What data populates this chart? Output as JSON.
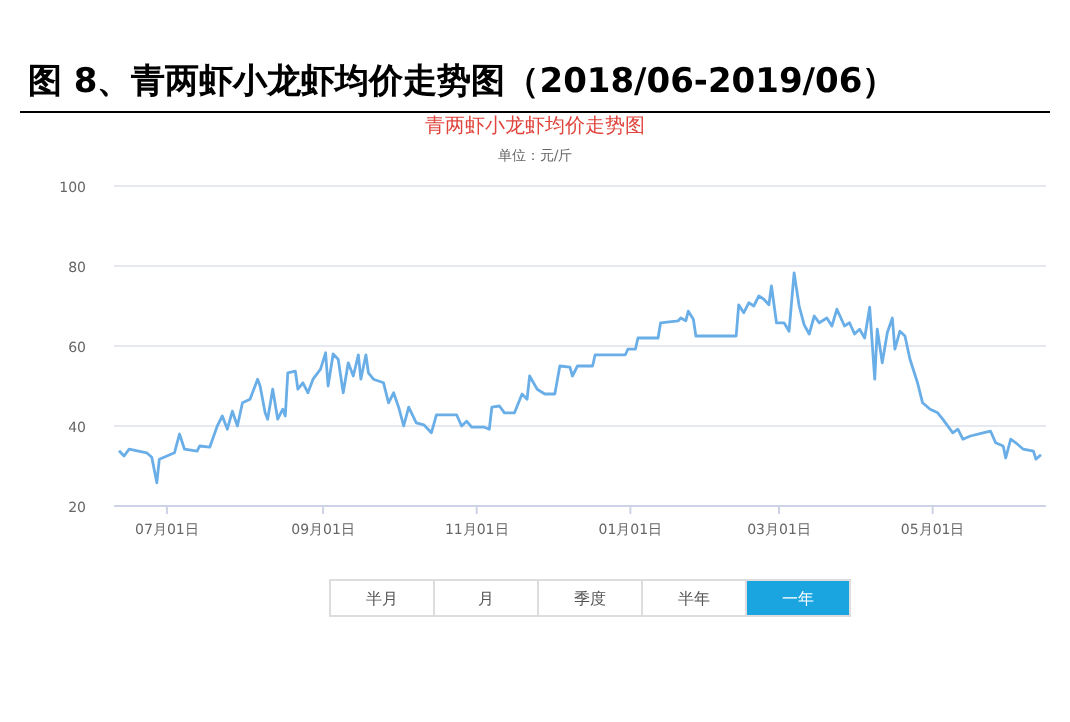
{
  "chart_data": {
    "type": "line",
    "title": "图 8、青两虾小龙虾均价走势图（2018/06-2019/06）",
    "subtitle": "青两虾小龙虾均价走势图",
    "ylabel": "单位：元/斤",
    "annotations": [
      "半月",
      "月",
      "季度",
      "半年",
      "一年"
    ],
    "xlim": [
      "2018-06-10",
      "2019-06-15"
    ],
    "xticks": [
      {
        "value": "2018-07-01",
        "label": "07月01日"
      },
      {
        "value": "2018-09-01",
        "label": "09月01日"
      },
      {
        "value": "2018-11-01",
        "label": "11月01日"
      },
      {
        "value": "2019-01-01",
        "label": "01月01日"
      },
      {
        "value": "2019-03-01",
        "label": "03月01日"
      },
      {
        "value": "2019-05-01",
        "label": "05月01日"
      }
    ],
    "ylim": [
      20,
      100
    ],
    "yticks": [
      20,
      40,
      60,
      80,
      100
    ],
    "grid": "y",
    "series": [
      {
        "color": "#6aaee8",
        "x": [
          "2018-06-12",
          "2018-06-14",
          "2018-06-16",
          "2018-06-23",
          "2018-06-25",
          "2018-06-27",
          "2018-06-28",
          "2018-07-04",
          "2018-07-06",
          "2018-07-08",
          "2018-07-13",
          "2018-07-14",
          "2018-07-18",
          "2018-07-21",
          "2018-07-23",
          "2018-07-25",
          "2018-07-27",
          "2018-07-29",
          "2018-07-31",
          "2018-08-03",
          "2018-08-06",
          "2018-08-07",
          "2018-08-09",
          "2018-08-10",
          "2018-08-12",
          "2018-08-14",
          "2018-08-16",
          "2018-08-17",
          "2018-08-18",
          "2018-08-21",
          "2018-08-22",
          "2018-08-24",
          "2018-08-26",
          "2018-08-28",
          "2018-08-31",
          "2018-09-02",
          "2018-09-03",
          "2018-09-05",
          "2018-09-07",
          "2018-09-09",
          "2018-09-11",
          "2018-09-13",
          "2018-09-15",
          "2018-09-16",
          "2018-09-18",
          "2018-09-19",
          "2018-09-21",
          "2018-09-25",
          "2018-09-27",
          "2018-09-29",
          "2018-10-01",
          "2018-10-03",
          "2018-10-05",
          "2018-10-08",
          "2018-10-11",
          "2018-10-14",
          "2018-10-16",
          "2018-10-24",
          "2018-10-26",
          "2018-10-28",
          "2018-10-30",
          "2018-11-04",
          "2018-11-06",
          "2018-11-07",
          "2018-11-10",
          "2018-11-12",
          "2018-11-16",
          "2018-11-19",
          "2018-11-21",
          "2018-11-22",
          "2018-11-25",
          "2018-11-28",
          "2018-12-02",
          "2018-12-04",
          "2018-12-08",
          "2018-12-09",
          "2018-12-11",
          "2018-12-17",
          "2018-12-18",
          "2018-12-30",
          "2018-12-31",
          "2019-01-03",
          "2019-01-04",
          "2019-01-12",
          "2019-01-13",
          "2019-01-20",
          "2019-01-21",
          "2019-01-23",
          "2019-01-24",
          "2019-01-26",
          "2019-01-27",
          "2019-02-12",
          "2019-02-13",
          "2019-02-15",
          "2019-02-17",
          "2019-02-19",
          "2019-02-21",
          "2019-02-23",
          "2019-02-25",
          "2019-02-26",
          "2019-02-28",
          "2019-03-03",
          "2019-03-05",
          "2019-03-07",
          "2019-03-09",
          "2019-03-11",
          "2019-03-13",
          "2019-03-15",
          "2019-03-17",
          "2019-03-20",
          "2019-03-22",
          "2019-03-24",
          "2019-03-27",
          "2019-03-29",
          "2019-03-31",
          "2019-04-02",
          "2019-04-04",
          "2019-04-06",
          "2019-04-08",
          "2019-04-09",
          "2019-04-11",
          "2019-04-13",
          "2019-04-15",
          "2019-04-16",
          "2019-04-18",
          "2019-04-20",
          "2019-04-22",
          "2019-04-25",
          "2019-04-27",
          "2019-04-30",
          "2019-05-03",
          "2019-05-05",
          "2019-05-09",
          "2019-05-11",
          "2019-05-13",
          "2019-05-16",
          "2019-05-21",
          "2019-05-24",
          "2019-05-26",
          "2019-05-29",
          "2019-05-30",
          "2019-06-01",
          "2019-06-03",
          "2019-06-06",
          "2019-06-10",
          "2019-06-11",
          "2019-06-13"
        ],
        "values": [
          33.8,
          32.5,
          34.2,
          33.3,
          32.2,
          25.8,
          31.7,
          33.3,
          38,
          34.2,
          33.7,
          35,
          34.7,
          40,
          42.5,
          39.2,
          43.7,
          40,
          45.8,
          46.7,
          51.7,
          50,
          43.3,
          41.7,
          49.2,
          41.7,
          44.2,
          42.5,
          53.3,
          53.7,
          49.2,
          50.8,
          48.3,
          51.7,
          54.2,
          58.3,
          50,
          58,
          56.7,
          48.3,
          55.8,
          52.5,
          57.8,
          51.7,
          57.8,
          53.3,
          51.7,
          50.8,
          45.8,
          48.3,
          44.7,
          40,
          44.7,
          40.8,
          40.3,
          38.3,
          42.8,
          42.8,
          40,
          41.2,
          39.7,
          39.7,
          39.2,
          44.7,
          45,
          43.3,
          43.3,
          48,
          46.7,
          52.5,
          49.2,
          48,
          48,
          55,
          54.7,
          52.5,
          55,
          55,
          57.8,
          57.8,
          59.2,
          59.2,
          62,
          62,
          65.8,
          66.3,
          67,
          66.3,
          68.7,
          66.7,
          62.5,
          62.5,
          70.3,
          68.3,
          70.8,
          70,
          72.5,
          71.7,
          70.3,
          75,
          65.8,
          65.8,
          63.7,
          78.3,
          70,
          65.3,
          63,
          67.5,
          65.8,
          67,
          65,
          69.2,
          65,
          65.8,
          63,
          64.2,
          62,
          69.7,
          51.7,
          64.2,
          55.8,
          63.3,
          67,
          59.2,
          63.7,
          62.5,
          56.7,
          50.8,
          45.8,
          44.2,
          43.3,
          41.7,
          38.3,
          39.2,
          36.7,
          37.5,
          38.3,
          38.7,
          35.8,
          35,
          32,
          36.7,
          35.8,
          34.2,
          33.7,
          31.7,
          32.8
        ]
      }
    ]
  }
}
